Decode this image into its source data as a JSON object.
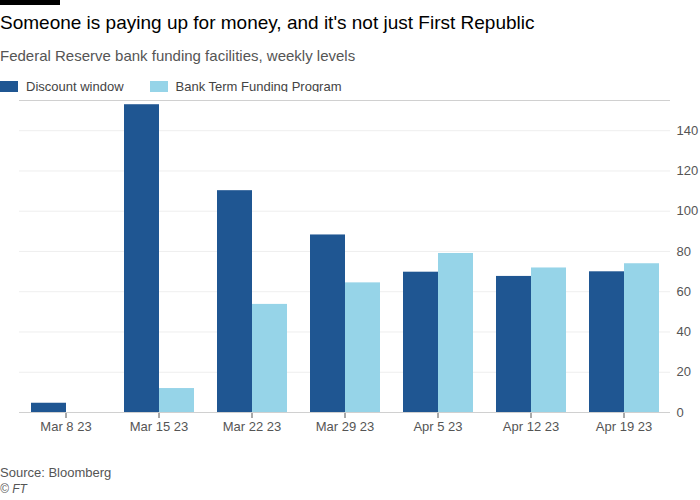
{
  "chart_data": {
    "type": "bar",
    "title": "Someone is paying up for money, and it's not just First Republic",
    "subtitle": "Federal Reserve bank funding facilities, weekly levels",
    "source": "Source: Bloomberg",
    "credit": "© FT",
    "categories": [
      "Mar 8 23",
      "Mar 15 23",
      "Mar 22 23",
      "Mar 29 23",
      "Apr 5 23",
      "Apr 12 23",
      "Apr 19 23"
    ],
    "series": [
      {
        "name": "Discount window",
        "color": "#1f5692",
        "values": [
          4.6,
          152.9,
          110.2,
          88.2,
          69.7,
          67.6,
          69.9
        ]
      },
      {
        "name": "Bank Term Funding Program",
        "color": "#96d4e8",
        "values": [
          null,
          11.9,
          53.7,
          64.4,
          79.0,
          71.8,
          73.9
        ]
      }
    ],
    "ylim": [
      0,
      155
    ],
    "yticks": [
      0,
      20,
      40,
      60,
      80,
      100,
      120,
      140
    ],
    "grid": true,
    "legend": "top-left"
  }
}
